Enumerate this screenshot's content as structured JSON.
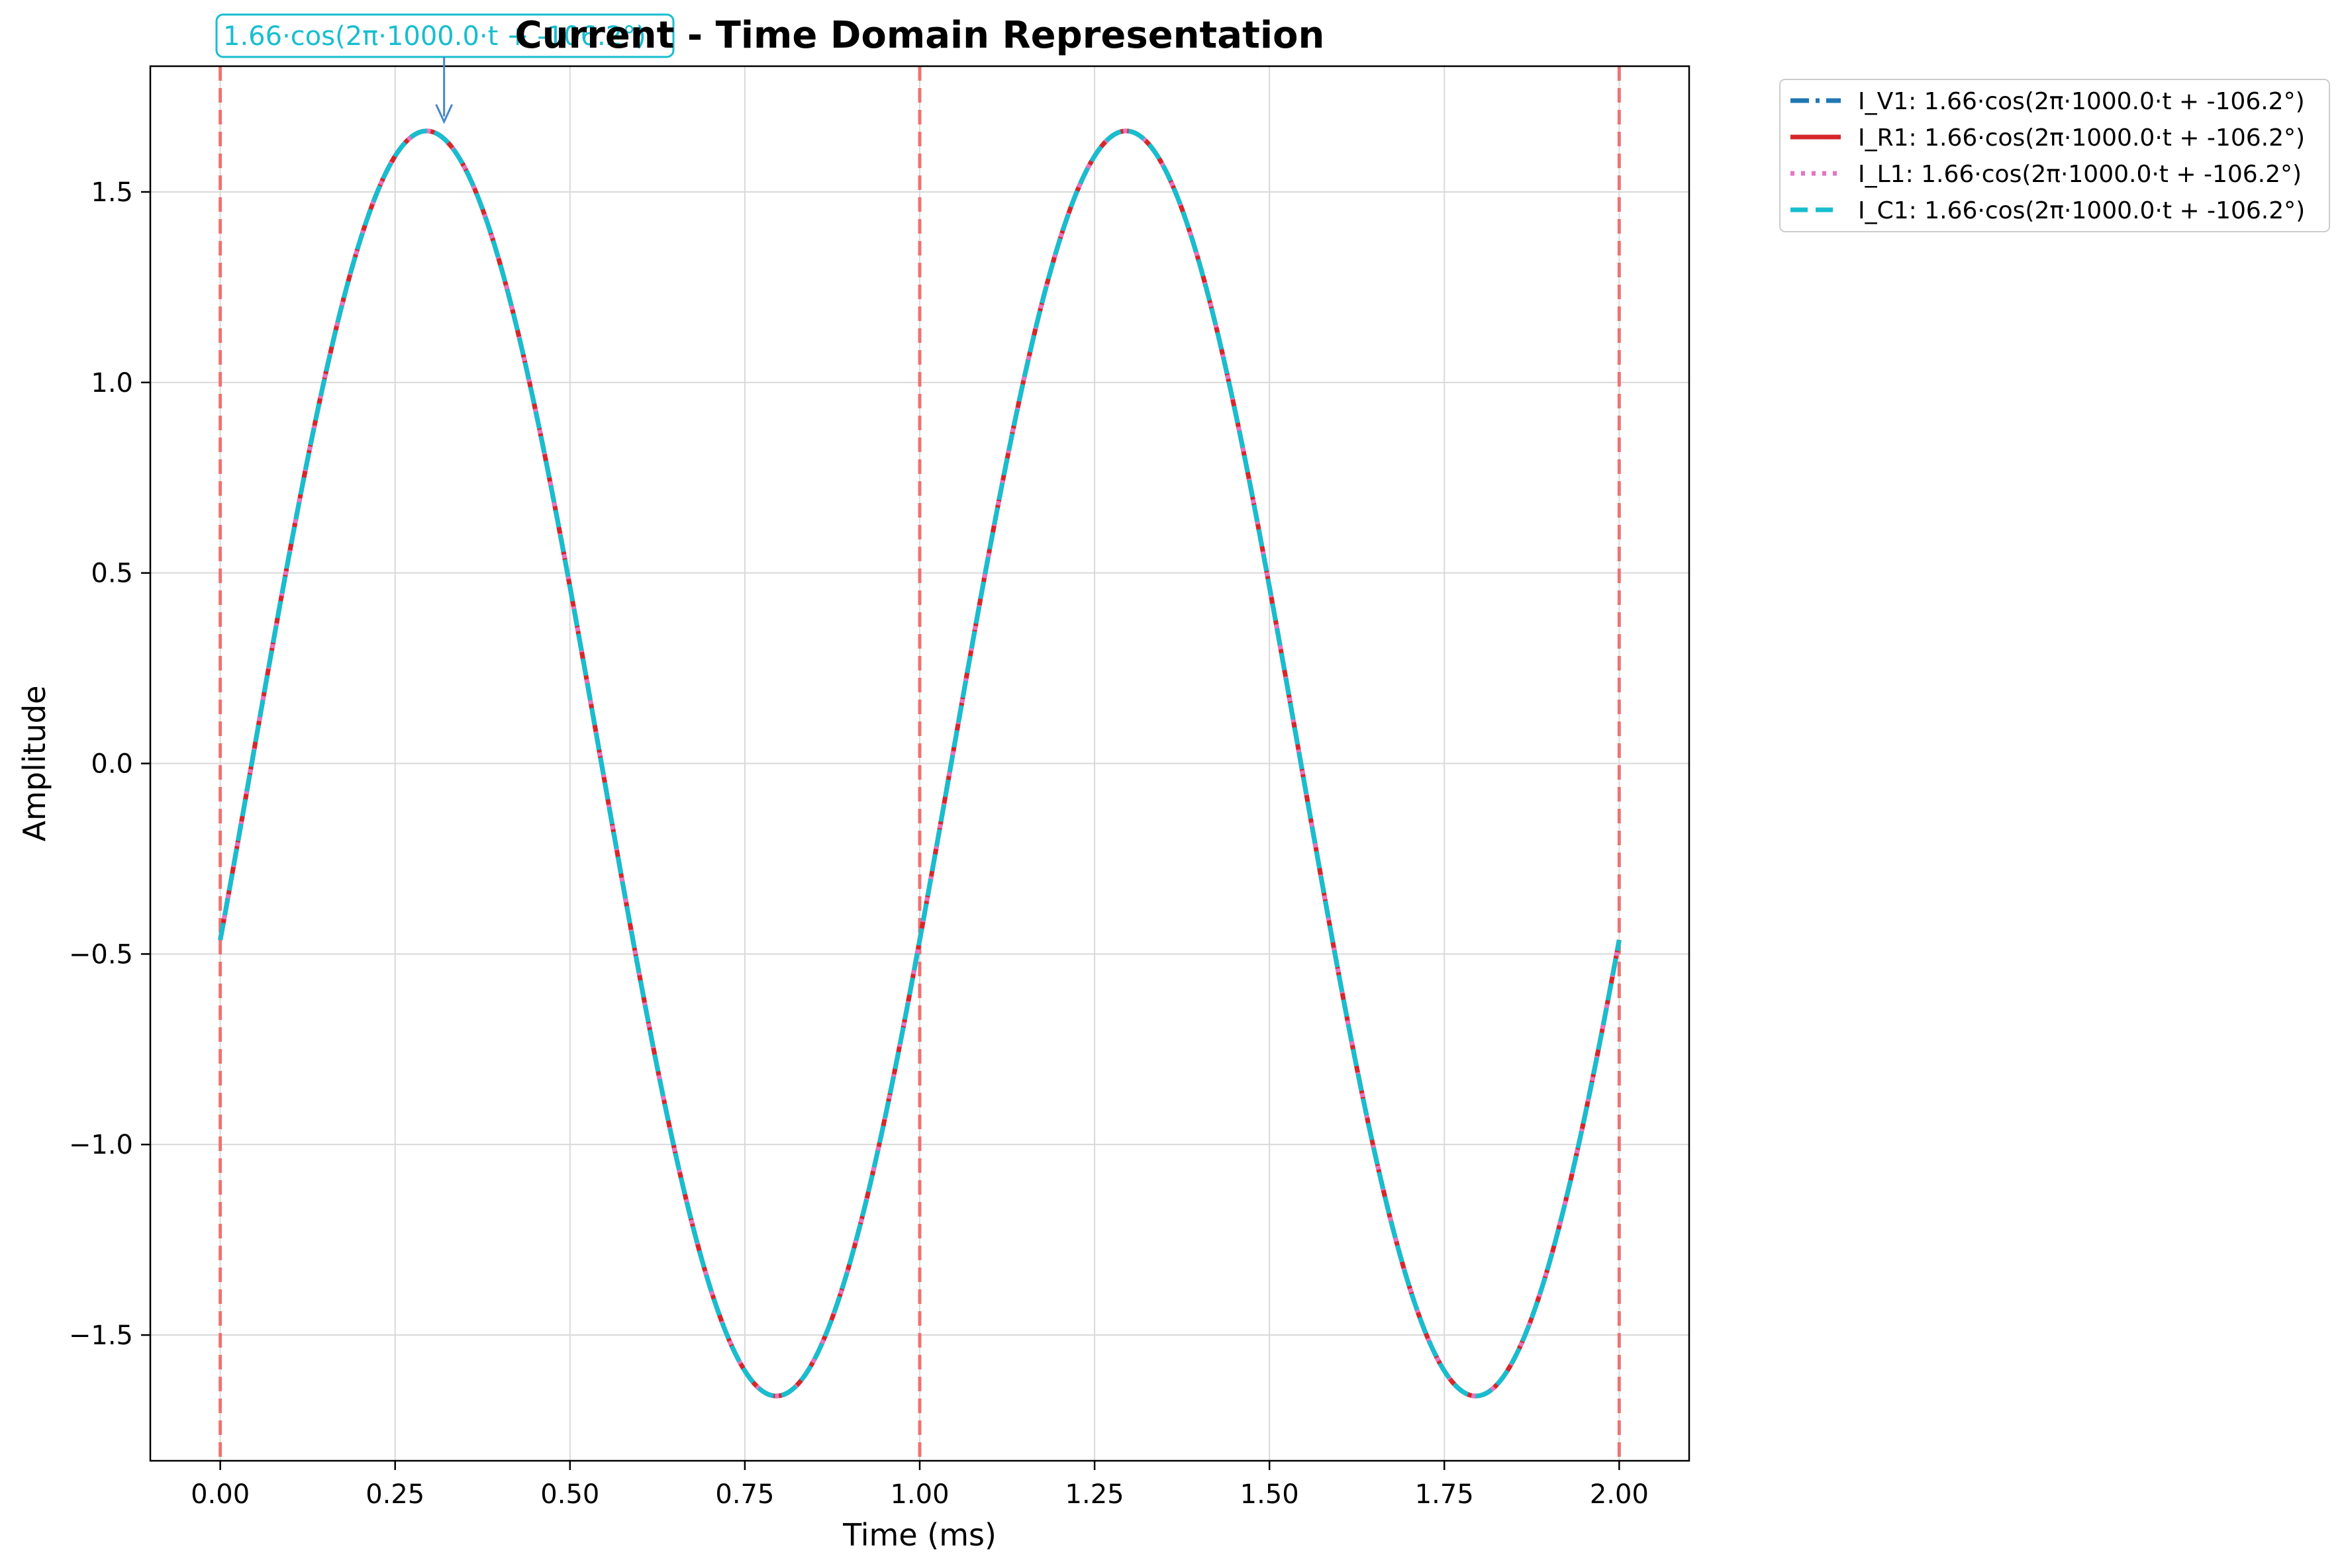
{
  "chart_data": {
    "type": "line",
    "title": "Current - Time Domain Representation",
    "xlabel": "Time (ms)",
    "ylabel": "Amplitude",
    "xlim": [
      -0.1,
      2.1
    ],
    "ylim": [
      -1.83,
      1.83
    ],
    "xticks": [
      0.0,
      0.25,
      0.5,
      0.75,
      1.0,
      1.25,
      1.5,
      1.75,
      2.0
    ],
    "xtick_labels": [
      "0.00",
      "0.25",
      "0.50",
      "0.75",
      "1.00",
      "1.25",
      "1.50",
      "1.75",
      "2.00"
    ],
    "yticks": [
      -1.5,
      -1.0,
      -0.5,
      0.0,
      0.5,
      1.0,
      1.5
    ],
    "ytick_labels": [
      "−1.5",
      "−1.0",
      "−0.5",
      "0.0",
      "0.5",
      "1.0",
      "1.5"
    ],
    "grid": true,
    "legend_position": "outside top-right",
    "period_markers": [
      0.0,
      1.0,
      2.0
    ],
    "period_marker_color": "#f06666",
    "annotation": {
      "text": "1.66·cos(2π·1000.0·t + -106.2°)",
      "x": 0.32,
      "y": 1.66,
      "color": "#17becf"
    },
    "signal": {
      "amplitude": 1.66,
      "frequency_hz": 1000.0,
      "phase_deg": -106.2,
      "x_start": 0.0,
      "x_end": 2.0
    },
    "series": [
      {
        "name": "I_V1: 1.66·cos(2π·1000.0·t + -106.2°)",
        "color": "#1f77b4",
        "style": "dashdot"
      },
      {
        "name": "I_R1: 1.66·cos(2π·1000.0·t + -106.2°)",
        "color": "#d62728",
        "style": "solid"
      },
      {
        "name": "I_L1: 1.66·cos(2π·1000.0·t + -106.2°)",
        "color": "#e377c2",
        "style": "dotted"
      },
      {
        "name": "I_C1: 1.66·cos(2π·1000.0·t + -106.2°)",
        "color": "#17becf",
        "style": "dashed"
      }
    ]
  }
}
